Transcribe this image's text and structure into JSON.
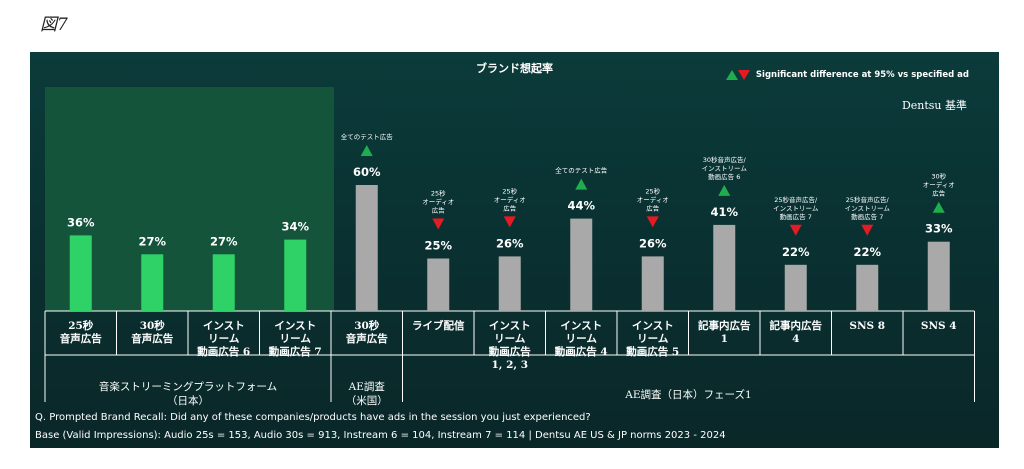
{
  "figure_label": "図7",
  "chart_data": {
    "type": "bar",
    "title": "ブランド想起率",
    "legend_text": "Significant difference at 95% vs specified ad",
    "baseline_label": "Dentsu 基準",
    "categories": [
      [
        "25秒",
        "音声広告"
      ],
      [
        "30秒",
        "音声広告"
      ],
      [
        "インスト",
        "リーム",
        "動画広告 6"
      ],
      [
        "インスト",
        "リーム",
        "動画広告 7"
      ],
      [
        "30秒",
        "音声広告"
      ],
      [
        "ライブ配信"
      ],
      [
        "インスト",
        "リーム",
        "動画広告",
        "1, 2, 3"
      ],
      [
        "インスト",
        "リーム",
        "動画広告 4"
      ],
      [
        "インスト",
        "リーム",
        "動画広告 5"
      ],
      [
        "記事内広告",
        "1"
      ],
      [
        "記事内広告",
        "4"
      ],
      [
        "SNS 8"
      ],
      [
        "SNS 4"
      ]
    ],
    "values": [
      36,
      27,
      27,
      34,
      60,
      25,
      26,
      44,
      26,
      41,
      22,
      22,
      33
    ],
    "value_labels": [
      "36%",
      "27%",
      "27%",
      "34%",
      "60%",
      "25%",
      "26%",
      "44%",
      "26%",
      "41%",
      "22%",
      "22%",
      "33%"
    ],
    "bar_colors": [
      "#2ed267",
      "#2ed267",
      "#2ed267",
      "#2ed267",
      "#a9a9a9",
      "#a9a9a9",
      "#a9a9a9",
      "#a9a9a9",
      "#a9a9a9",
      "#a9a9a9",
      "#a9a9a9",
      "#a9a9a9",
      "#a9a9a9"
    ],
    "annotations": [
      null,
      null,
      null,
      null,
      {
        "direction": "up",
        "text": [
          "全てのテスト広告"
        ]
      },
      {
        "direction": "down",
        "text": [
          "25秒",
          "オーディオ",
          "広告"
        ]
      },
      {
        "direction": "down",
        "text": [
          "25秒",
          "オーディオ",
          "広告"
        ]
      },
      {
        "direction": "up",
        "text": [
          "全てのテスト広告"
        ]
      },
      {
        "direction": "down",
        "text": [
          "25秒",
          "オーディオ",
          "広告"
        ]
      },
      {
        "direction": "up",
        "text": [
          "30秒音声広告/",
          "インストリーム",
          "動画広告 6"
        ]
      },
      {
        "direction": "down",
        "text": [
          "25秒音声広告/",
          "インストリーム",
          "動画広告 7"
        ]
      },
      {
        "direction": "down",
        "text": [
          "25秒音声広告/",
          "インストリーム",
          "動画広告 7"
        ]
      },
      {
        "direction": "up",
        "text": [
          "30秒",
          "オーディオ",
          "広告"
        ]
      }
    ],
    "groups": [
      {
        "label": [
          "音楽ストリーミングプラットフォーム",
          "（日本）"
        ]
      },
      {
        "label": [
          "AE調査",
          "（米国）"
        ]
      },
      {
        "label": [
          "AE調査（日本）フェーズ1"
        ]
      }
    ]
  },
  "colors": {
    "up": "#1fae4e",
    "down": "#e51b24"
  },
  "footnote_question": "Q. Prompted Brand Recall: Did any of these companies/products have ads in the session you just experienced?",
  "footnote_base": "Base (Valid Impressions): Audio 25s = 153, Audio 30s = 913, Instream 6 = 104, Instream 7 = 114 | Dentsu AE US & JP norms 2023 - 2024"
}
